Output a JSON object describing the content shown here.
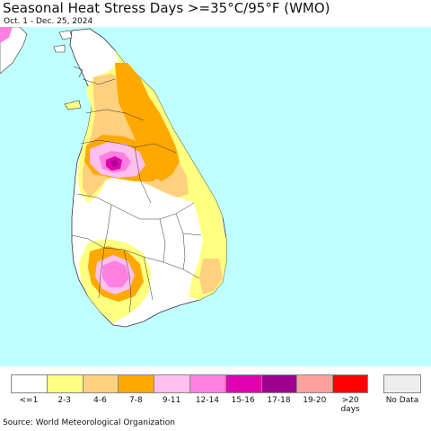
{
  "header": {
    "title": "Seasonal Heat Stress Days >=35°C/95°F (WMO)",
    "subtitle": "Oct. 1 - Dec. 25, 2024"
  },
  "legend": {
    "bins": [
      {
        "label": "<=1",
        "color": "#ffffff"
      },
      {
        "label": "2-3",
        "color": "#ffff80"
      },
      {
        "label": "4-6",
        "color": "#ffd080"
      },
      {
        "label": "7-8",
        "color": "#ffa800"
      },
      {
        "label": "9-11",
        "color": "#ffc0f0"
      },
      {
        "label": "12-14",
        "color": "#ff80e0"
      },
      {
        "label": "15-16",
        "color": "#e000b0"
      },
      {
        "label": "17-18",
        "color": "#a00090"
      },
      {
        "label": "19-20",
        "color": "#ffa0a0"
      },
      {
        "label": ">20 days",
        "color": "#ff0000"
      }
    ],
    "no_data": {
      "label": "No Data",
      "color": "#eeeeee"
    }
  },
  "map": {
    "ocean_color": "#c0ffff",
    "land_default_color": "#ffffff",
    "border_color": "#333333"
  },
  "footer": {
    "source": "Source: World Meteorological Organization"
  }
}
